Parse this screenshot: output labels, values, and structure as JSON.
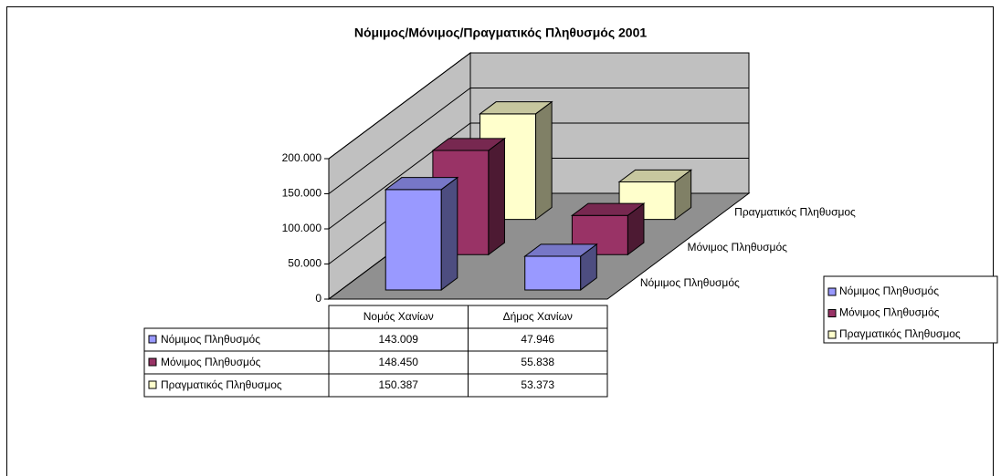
{
  "chart_data": {
    "type": "bar3d",
    "title": "Νόμιμος/Μόνιμος/Πραγματικός Πληθυσμός 2001",
    "categories": [
      "Νομός Χανίων",
      "Δήμος Χανίων"
    ],
    "series": [
      {
        "name": "Νόμιμος Πληθυσμός",
        "color": "#9999ff",
        "values": [
          143009,
          47946
        ],
        "value_labels": [
          "143.009",
          "47.946"
        ]
      },
      {
        "name": "Μόνιμος Πληθυσμός",
        "color": "#993366",
        "values": [
          148450,
          55838
        ],
        "value_labels": [
          "148.450",
          "55.838"
        ]
      },
      {
        "name": "Πραγματικός Πληθυσμος",
        "color": "#ffffcc",
        "values": [
          150387,
          53373
        ],
        "value_labels": [
          "150.387",
          "53.373"
        ]
      }
    ],
    "ylim": [
      0,
      200000
    ],
    "yticks": [
      0,
      {
        "value": 50000,
        "label": "50.000"
      },
      {
        "value": 100000,
        "label": "100.000"
      },
      {
        "value": 150000,
        "label": "150.000"
      },
      {
        "value": 200000,
        "label": "200.000"
      }
    ],
    "grid": true,
    "legend": "right"
  }
}
